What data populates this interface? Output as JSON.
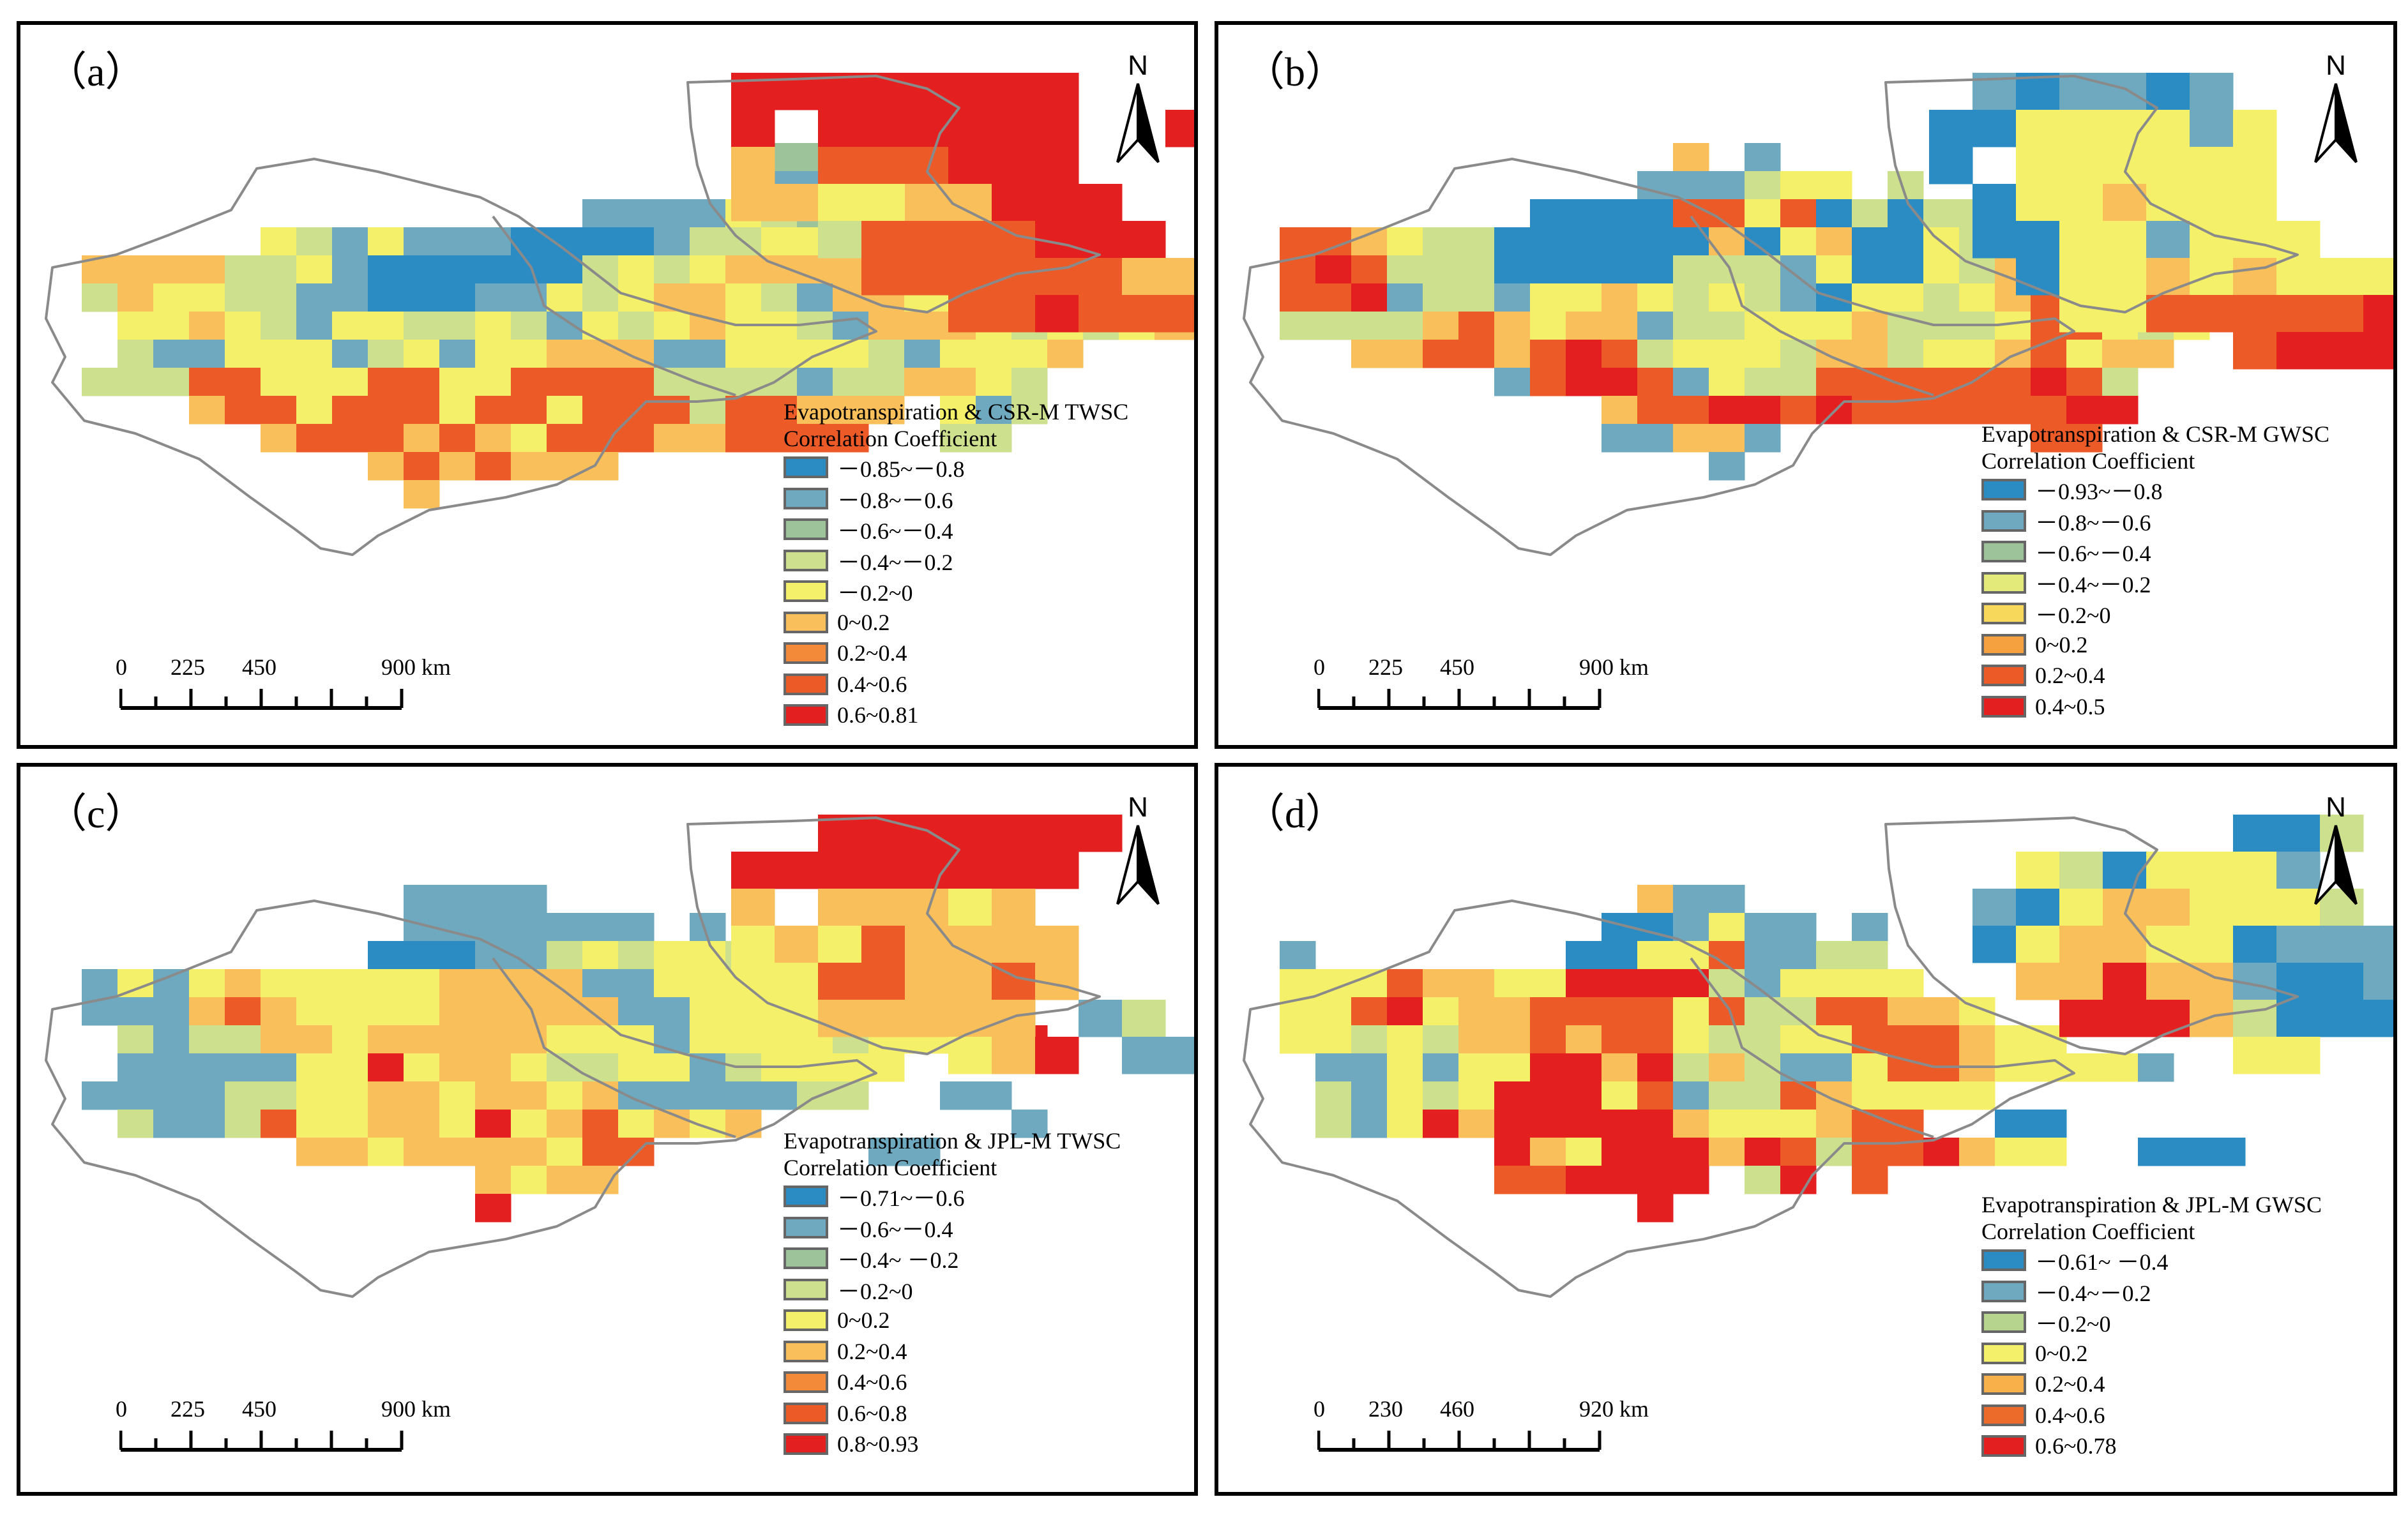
{
  "colors": {
    "blue": "#2b8cc4",
    "steel": "#6ea9c0",
    "sage": "#9cc39a",
    "lime": "#cde08d",
    "yellow": "#f5f06a",
    "lightorange": "#f8bf5a",
    "orange": "#f28a3a",
    "redorange": "#ec5a28",
    "red": "#e3201f",
    "outline": "#8a8a8a"
  },
  "north_label": "N",
  "panels": [
    {
      "label": "（a）",
      "legend_title_1": "Evapotranspiration & CSR-M TWSC",
      "legend_title_2": "Correlation Coefficient",
      "legend": [
        {
          "label": "－0.85~－0.8",
          "color": "#2b8cc4"
        },
        {
          "label": "－0.8~－0.6",
          "color": "#6ea9c0"
        },
        {
          "label": "－0.6~－0.4",
          "color": "#9cc39a"
        },
        {
          "label": "－0.4~－0.2",
          "color": "#cde08d"
        },
        {
          "label": "－0.2~0",
          "color": "#f5f06a"
        },
        {
          "label": "0~0.2",
          "color": "#f8bf5a"
        },
        {
          "label": "0.2~0.4",
          "color": "#f28a3a"
        },
        {
          "label": "0.4~0.6",
          "color": "#ec5a28"
        },
        {
          "label": "0.6~0.81",
          "color": "#e3201f"
        }
      ],
      "scale": [
        "0",
        "225",
        "450",
        "900 km"
      ]
    },
    {
      "label": "（b）",
      "legend_title_1": "Evapotranspiration & CSR-M GWSC",
      "legend_title_2": "Correlation Coefficient",
      "legend": [
        {
          "label": "－0.93~－0.8",
          "color": "#2b8cc4"
        },
        {
          "label": "－0.8~－0.6",
          "color": "#6ea9c0"
        },
        {
          "label": "－0.6~－0.4",
          "color": "#9cc39a"
        },
        {
          "label": "－0.4~－0.2",
          "color": "#e4ea7a"
        },
        {
          "label": "－0.2~0",
          "color": "#f8d85a"
        },
        {
          "label": "0~0.2",
          "color": "#f5a140"
        },
        {
          "label": "0.2~0.4",
          "color": "#ec5a28"
        },
        {
          "label": "0.4~0.5",
          "color": "#e3201f"
        }
      ],
      "scale": [
        "0",
        "225",
        "450",
        "900 km"
      ]
    },
    {
      "label": "（c）",
      "legend_title_1": "Evapotranspiration & JPL-M TWSC",
      "legend_title_2": "Correlation Coefficient",
      "legend": [
        {
          "label": "－0.71~－0.6",
          "color": "#2b8cc4"
        },
        {
          "label": "－0.6~－0.4",
          "color": "#6ea9c0"
        },
        {
          "label": "－0.4~ －0.2",
          "color": "#9cc39a"
        },
        {
          "label": "－0.2~0",
          "color": "#cde08d"
        },
        {
          "label": "0~0.2",
          "color": "#f5f06a"
        },
        {
          "label": "0.2~0.4",
          "color": "#f8bf5a"
        },
        {
          "label": "0.4~0.6",
          "color": "#f28a3a"
        },
        {
          "label": "0.6~0.8",
          "color": "#ec5a28"
        },
        {
          "label": "0.8~0.93",
          "color": "#e3201f"
        }
      ],
      "scale": [
        "0",
        "225",
        "450",
        "900 km"
      ]
    },
    {
      "label": "（d）",
      "legend_title_1": "Evapotranspiration & JPL-M GWSC",
      "legend_title_2": "Correlation Coefficient",
      "legend": [
        {
          "label": "－0.61~ －0.4",
          "color": "#2b8cc4"
        },
        {
          "label": "－0.4~－0.2",
          "color": "#6ea9c0"
        },
        {
          "label": "－0.2~0",
          "color": "#b7d48e"
        },
        {
          "label": "0~0.2",
          "color": "#f5f06a"
        },
        {
          "label": "0.2~0.4",
          "color": "#f8b04a"
        },
        {
          "label": "0.4~0.6",
          "color": "#ec6a2a"
        },
        {
          "label": "0.6~0.78",
          "color": "#e3201f"
        }
      ],
      "scale": [
        "0",
        "230",
        "460",
        "920 km"
      ]
    }
  ],
  "grids": [
    {
      "west": [
        "....................cc..........................",
        "....................ssccy...........",
        "...............ssssylcyl.ol...........",
        "......ylsysssbbbbsllyylooo.y.....",
        ".oooollysbbbbbblylyooooloo....",
        ".loyyllssbbbssylyooylsooyyllyy..",
        "..yyoylsyyllylsylyoyylsoooylylyoo",
        "..lssyyyslysyyooossyyyylsyyyo...",
        ".lllrryyyrryyrrrrllllsllooyl",
        "....orryrrryrryrrrlrrooo.ysl",
        "......orrroroyrrroorrrr..ll",
        ".........ororooo..........",
        "..........o............."
      ],
      "east": [
        ".RRRRRRRR...R",
        ".R.RRRRRR..R",
        ".o.rrrRRR.",
        ".ooyyooRRR",
        "...lrrrrRRR",
        "....rrrrrrooyy",
        "......rrRrrr.."
      ]
    },
    {
      "west": [
        "............o.s..........",
        "...........ssslyy.l.......",
        "........bbbbrryrblbll.........",
        ".rroyllbbbbbbobyobbyll......",
        ".rRrlllbbbbblllsybbyloo.ll",
        ".rrRsllsyyoylylsbyylyoryl...",
        ".lllloroyoosllyyyolllyrryly",
        "...oorrorRrlyyyloolyyoryoo",
        ".......srRRrsyllrrrrrrRrl",
        "..........orrRRrRrrrrrrRR.",
        "..........ssoos.......rr",
        ".............s..."
      ],
      "east": [
        "..sbssbs.",
        ".bbyyyysy...s",
        ".b.yyyyyy",
        "..byyoyyy",
        "..bbyysyyy",
        "...byyoyoyyy",
        "....yyrrrrrRrr",
        "........rRRR.."
      ]
    },
    {
      "west": [
        "..........ssss.........",
        "..........sssssss.s.......",
        ".........bbbsslylyylsl..........",
        ".sysyoyyyyyoooossyyyy............",
        ".sssoroyyyyooooossyysyyyy....",
        "..lsllooyoooooyyysyyyylyyyRR",
        "..sssssyyRyooyllyyslyyyy.",
        ".ssssllyyooyooyosssssll..ss.",
        "..lsslryyooyRyoryoyo.......s.",
        ".......ooyooooyrr......ss.",
        "............oyoo..........",
        "............R.........."
      ],
      "east": [
        "...RRRRRRR...",
        ".RRRRRRRR..",
        ".o.oooyo.",
        ".yoyroooo",
        ".yyrrooro",
        ".yyooooo.sl",
        "......yoR.ss"
      ]
    },
    {
      "west": [
        "...........oss.............",
        "..........bbsyss.s.........",
        ".s.......bbyyrssll.........",
        ".yyyrooyyRRRRlsyyyy.........",
        ".yyrRyoorrrryrllrrooy.......",
        ".yylyloororryllyyrrroyy...",
        "..ssysyyRRoRlolssyrroyyyys.",
        "..lsylyRRRyrsllroyyyy.......",
        "..lsyRoRRRRRoyyyorr..bb...",
        ".......RoyRRRoRrlrrRoyy..bbb",
        ".......rrRRRR.lR.r.......",
        "...........R.........."
      ],
      "east": [
        "........bbl.",
        "...ylbyyys..",
        "..sbyooyyyl.",
        "..byooyybsss",
        "...ooRoosbbs",
        "....RRRolbbbsssss",
        "........yy...y"
      ]
    }
  ]
}
